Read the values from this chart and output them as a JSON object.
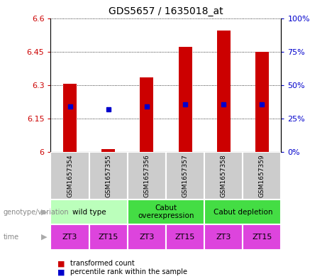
{
  "title": "GDS5657 / 1635018_at",
  "samples": [
    "GSM1657354",
    "GSM1657355",
    "GSM1657356",
    "GSM1657357",
    "GSM1657358",
    "GSM1657359"
  ],
  "bar_tops": [
    6.305,
    6.013,
    6.335,
    6.47,
    6.545,
    6.45
  ],
  "bar_bottom": 6.0,
  "blue_dots": [
    6.205,
    6.19,
    6.205,
    6.213,
    6.215,
    6.213
  ],
  "ylim": [
    6.0,
    6.6
  ],
  "yticks_left": [
    6.0,
    6.15,
    6.3,
    6.45,
    6.6
  ],
  "ytick_left_labels": [
    "6",
    "6.15",
    "6.3",
    "6.45",
    "6.6"
  ],
  "yticks_right": [
    0,
    25,
    50,
    75,
    100
  ],
  "ytick_right_labels": [
    "0%",
    "25%",
    "50%",
    "75%",
    "100%"
  ],
  "bar_color": "#cc0000",
  "dot_color": "#0000cc",
  "grid_color": "#000000",
  "genotype_groups": [
    {
      "label": "wild type",
      "start": 0,
      "end": 1,
      "color": "#bbffbb"
    },
    {
      "label": "Cabut\noverexpression",
      "start": 2,
      "end": 3,
      "color": "#44dd44"
    },
    {
      "label": "Cabut depletion",
      "start": 4,
      "end": 5,
      "color": "#44dd44"
    }
  ],
  "time_labels": [
    "ZT3",
    "ZT15",
    "ZT3",
    "ZT15",
    "ZT3",
    "ZT15"
  ],
  "time_color": "#dd44dd",
  "genotype_label": "genotype/variation",
  "time_label": "time",
  "legend_items": [
    {
      "label": "transformed count",
      "color": "#cc0000"
    },
    {
      "label": "percentile rank within the sample",
      "color": "#0000cc"
    }
  ],
  "sample_box_color": "#cccccc",
  "left_axis_color": "#cc0000",
  "right_axis_color": "#0000cc",
  "bar_width": 0.35
}
